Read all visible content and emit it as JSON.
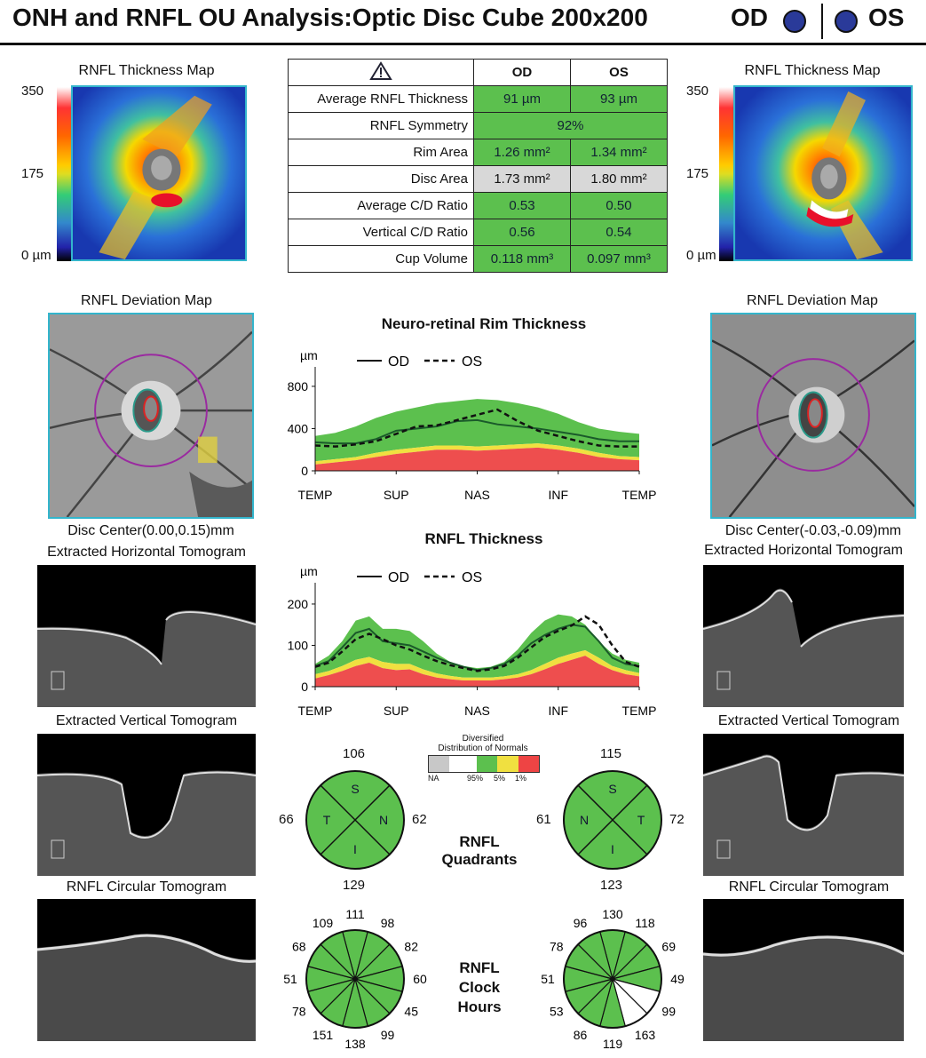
{
  "header": {
    "title": "ONH and RNFL OU Analysis:Optic Disc Cube 200x200",
    "od_label": "OD",
    "os_label": "OS"
  },
  "od": {
    "thickness_map_title": "RNFL Thickness Map",
    "scale_labels": [
      "350",
      "175",
      "0 µm"
    ],
    "deviation_map_title": "RNFL Deviation Map",
    "disc_center": "Disc Center(0.00,0.15)mm",
    "horizontal_tomogram_title": "Extracted Horizontal Tomogram",
    "vertical_tomogram_title": "Extracted Vertical Tomogram",
    "circular_tomogram_title": "RNFL Circular Tomogram"
  },
  "os": {
    "thickness_map_title": "RNFL Thickness Map",
    "scale_labels": [
      "350",
      "175",
      "0 µm"
    ],
    "deviation_map_title": "RNFL Deviation Map",
    "disc_center": "Disc Center(-0.03,-0.09)mm",
    "horizontal_tomogram_title": "Extracted Horizontal Tomogram",
    "vertical_tomogram_title": "Extracted Vertical Tomogram",
    "circular_tomogram_title": "RNFL Circular Tomogram"
  },
  "table": {
    "warning_icon": "warning-triangle-icon",
    "col_od": "OD",
    "col_os": "OS",
    "rows": [
      {
        "label": "Average RNFL Thickness",
        "od": "91 µm",
        "os": "93 µm"
      },
      {
        "label": "RNFL Symmetry",
        "both": "92%"
      },
      {
        "label": "Rim Area",
        "od": "1.26 mm²",
        "os": "1.34 mm²"
      },
      {
        "label": "Disc Area",
        "od": "1.73 mm²",
        "os": "1.80 mm²"
      },
      {
        "label": "Average C/D Ratio",
        "od": "0.53",
        "os": "0.50"
      },
      {
        "label": "Vertical C/D Ratio",
        "od": "0.56",
        "os": "0.54"
      },
      {
        "label": "Cup Volume",
        "od": "0.118 mm³",
        "os": "0.097 mm³"
      }
    ]
  },
  "legend": {
    "od": "OD",
    "os": "OS"
  },
  "normals_legend": {
    "title_line1": "Diversified",
    "title_line2": "Distribution of Normals",
    "labels": [
      "NA",
      "95%",
      "5%",
      "1%"
    ],
    "colors": [
      "#c8c8c8",
      "#ffffff",
      "#5cc04e",
      "#f0e040",
      "#ee4444"
    ]
  },
  "quadrant_label": [
    "RNFL",
    "Quadrants"
  ],
  "clock_label": [
    "RNFL",
    "Clock",
    "Hours"
  ],
  "chart_data": [
    {
      "type": "area",
      "title": "Neuro-retinal Rim Thickness",
      "ylabel": "µm",
      "categories": [
        "TEMP",
        "SUP",
        "NAS",
        "INF",
        "TEMP"
      ],
      "yticks": [
        0,
        400,
        800
      ],
      "ylim": [
        0,
        900
      ],
      "x": [
        0,
        1,
        2,
        3,
        4,
        5,
        6,
        7,
        8,
        9,
        10,
        11,
        12,
        13,
        14,
        15,
        16
      ],
      "normal_bands": {
        "red_upper": [
          60,
          80,
          100,
          130,
          160,
          180,
          200,
          200,
          190,
          200,
          210,
          220,
          200,
          170,
          130,
          110,
          100
        ],
        "yellow_upper": [
          90,
          110,
          130,
          170,
          200,
          220,
          240,
          240,
          230,
          240,
          250,
          260,
          240,
          210,
          170,
          140,
          130
        ],
        "green_upper": [
          330,
          360,
          420,
          500,
          560,
          600,
          640,
          660,
          680,
          670,
          640,
          600,
          540,
          460,
          400,
          370,
          350
        ]
      },
      "series": [
        {
          "name": "OD",
          "style": "solid",
          "values": [
            270,
            260,
            260,
            300,
            380,
            400,
            420,
            470,
            480,
            440,
            420,
            400,
            370,
            340,
            300,
            280,
            280
          ]
        },
        {
          "name": "OS",
          "style": "dashed",
          "values": [
            240,
            230,
            250,
            280,
            350,
            420,
            430,
            480,
            530,
            580,
            470,
            380,
            330,
            280,
            240,
            230,
            230
          ]
        }
      ]
    },
    {
      "type": "area",
      "title": "RNFL Thickness",
      "ylabel": "µm",
      "categories": [
        "TEMP",
        "SUP",
        "NAS",
        "INF",
        "TEMP"
      ],
      "yticks": [
        0,
        100,
        200
      ],
      "ylim": [
        0,
        230
      ],
      "x": [
        0,
        1,
        2,
        3,
        4,
        5,
        6,
        7,
        8,
        9,
        10,
        11,
        12,
        13,
        14,
        15,
        16,
        17,
        18,
        19,
        20,
        21,
        22,
        23,
        24
      ],
      "normal_bands": {
        "red_upper": [
          20,
          28,
          38,
          50,
          58,
          45,
          40,
          42,
          30,
          22,
          18,
          15,
          15,
          15,
          18,
          22,
          30,
          42,
          55,
          65,
          75,
          55,
          40,
          30,
          25
        ],
        "yellow_upper": [
          30,
          38,
          50,
          65,
          72,
          60,
          55,
          55,
          42,
          32,
          26,
          22,
          22,
          22,
          25,
          30,
          40,
          55,
          70,
          80,
          88,
          70,
          50,
          40,
          33
        ],
        "green_upper": [
          55,
          75,
          110,
          160,
          170,
          140,
          140,
          135,
          110,
          80,
          60,
          50,
          45,
          48,
          60,
          90,
          130,
          160,
          175,
          170,
          150,
          110,
          80,
          65,
          58
        ]
      },
      "series": [
        {
          "name": "OD",
          "style": "solid",
          "values": [
            50,
            62,
            95,
            130,
            140,
            110,
            105,
            100,
            85,
            70,
            58,
            48,
            40,
            45,
            55,
            75,
            105,
            125,
            140,
            150,
            145,
            110,
            70,
            55,
            50
          ]
        },
        {
          "name": "OS",
          "style": "dashed",
          "values": [
            48,
            58,
            85,
            115,
            128,
            115,
            100,
            90,
            75,
            62,
            52,
            45,
            38,
            42,
            50,
            70,
            95,
            120,
            135,
            148,
            170,
            150,
            100,
            60,
            48
          ]
        }
      ]
    }
  ],
  "quadrants": {
    "od": {
      "S": "106",
      "T": "66",
      "N": "62",
      "I": "129",
      "letters": [
        "S",
        "T",
        "N",
        "I"
      ]
    },
    "os": {
      "S": "115",
      "N": "61",
      "T": "72",
      "I": "123",
      "letters": [
        "S",
        "N",
        "T",
        "I"
      ]
    }
  },
  "clock_hours": {
    "od": [
      "111",
      "98",
      "82",
      "60",
      "45",
      "99",
      "138",
      "151",
      "78",
      "51",
      "68",
      "109"
    ],
    "os": [
      "130",
      "118",
      "69",
      "49",
      "99",
      "163",
      "119",
      "86",
      "53",
      "51",
      "78",
      "96"
    ],
    "os_white_segments": [
      4,
      5
    ]
  }
}
